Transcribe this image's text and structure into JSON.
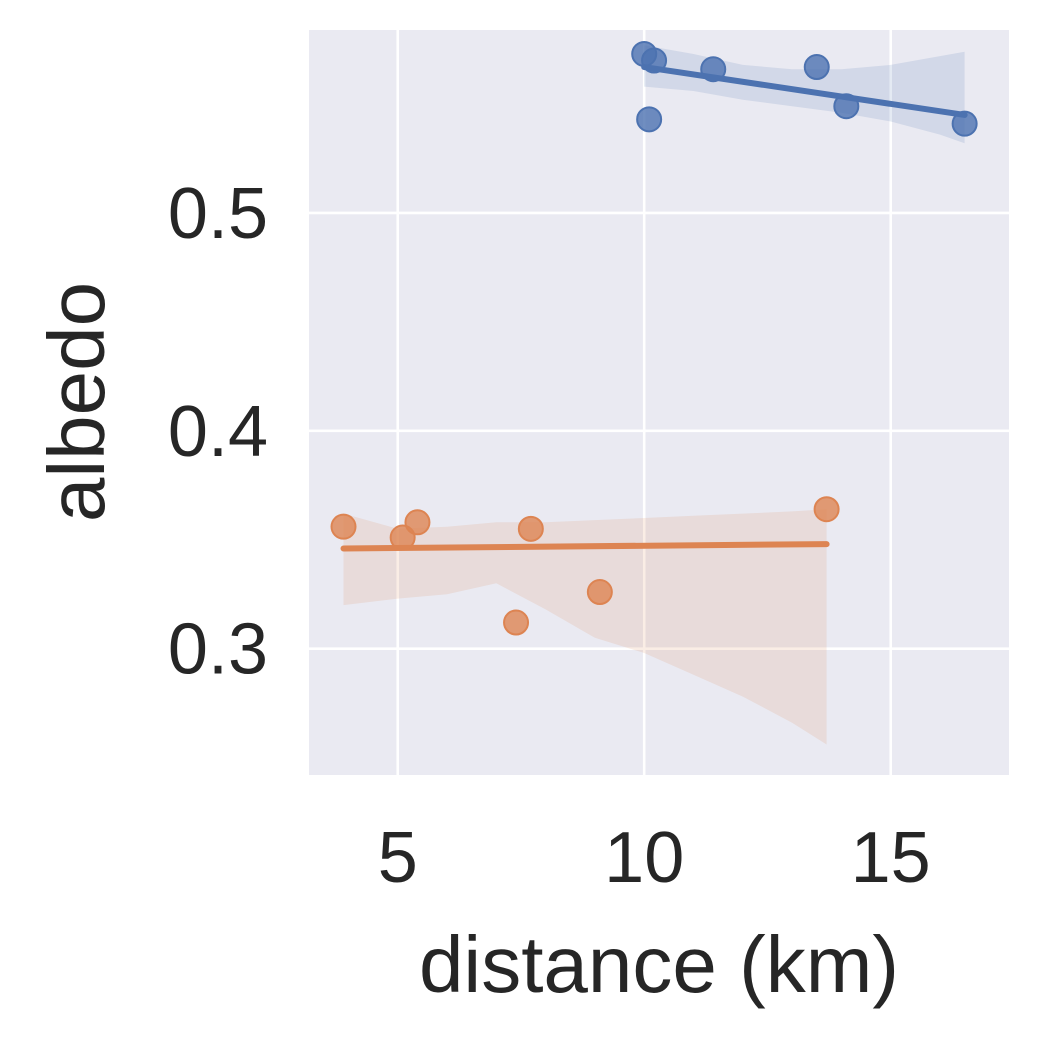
{
  "chart_data": {
    "type": "scatter",
    "title": "",
    "xlabel": "distance (km)",
    "ylabel": "albedo",
    "xlim": [
      3.2,
      17.4
    ],
    "ylim": [
      0.242,
      0.584
    ],
    "xticks": [
      5,
      10,
      15
    ],
    "yticks": [
      0.3,
      0.4,
      0.5
    ],
    "xtick_labels": [
      "5",
      "10",
      "15"
    ],
    "ytick_labels": [
      "0.3",
      "0.4",
      "0.5"
    ],
    "grid": true,
    "legend": "none",
    "background_color": "#eaeaf2",
    "grid_color": "#ffffff",
    "series": [
      {
        "color": "#4c72b0",
        "points": [
          {
            "x": 10.0,
            "y": 0.573
          },
          {
            "x": 10.2,
            "y": 0.57
          },
          {
            "x": 10.1,
            "y": 0.543
          },
          {
            "x": 11.4,
            "y": 0.566
          },
          {
            "x": 13.5,
            "y": 0.567
          },
          {
            "x": 14.1,
            "y": 0.549
          },
          {
            "x": 16.5,
            "y": 0.541
          }
        ],
        "fit_line": [
          {
            "x": 10.0,
            "y": 0.567
          },
          {
            "x": 16.5,
            "y": 0.545
          }
        ],
        "ci_band": {
          "x": [
            10.0,
            11.0,
            12.0,
            13.0,
            14.0,
            15.0,
            16.0,
            16.5
          ],
          "lower": [
            0.558,
            0.556,
            0.552,
            0.549,
            0.546,
            0.542,
            0.536,
            0.532
          ],
          "upper": [
            0.577,
            0.573,
            0.568,
            0.566,
            0.566,
            0.568,
            0.572,
            0.574
          ]
        }
      },
      {
        "color": "#dd8452",
        "points": [
          {
            "x": 3.9,
            "y": 0.356
          },
          {
            "x": 5.1,
            "y": 0.351
          },
          {
            "x": 5.4,
            "y": 0.358
          },
          {
            "x": 7.7,
            "y": 0.355
          },
          {
            "x": 7.4,
            "y": 0.312
          },
          {
            "x": 9.1,
            "y": 0.326
          },
          {
            "x": 13.7,
            "y": 0.364
          }
        ],
        "fit_line": [
          {
            "x": 3.9,
            "y": 0.346
          },
          {
            "x": 13.7,
            "y": 0.348
          }
        ],
        "ci_band": {
          "x": [
            3.9,
            5.0,
            6.0,
            7.0,
            8.0,
            9.0,
            10.0,
            11.0,
            12.0,
            13.0,
            13.7
          ],
          "lower": [
            0.32,
            0.323,
            0.325,
            0.33,
            0.318,
            0.305,
            0.298,
            0.288,
            0.278,
            0.266,
            0.256
          ],
          "upper": [
            0.362,
            0.355,
            0.356,
            0.358,
            0.358,
            0.359,
            0.36,
            0.361,
            0.362,
            0.363,
            0.364
          ]
        }
      }
    ]
  }
}
